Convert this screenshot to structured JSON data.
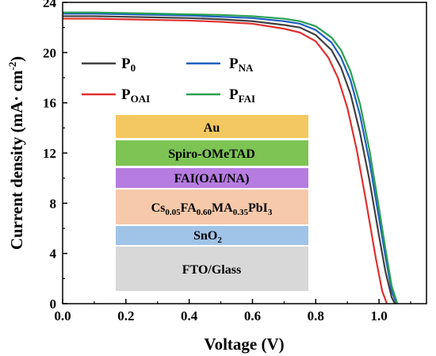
{
  "chart_data": {
    "type": "line",
    "xlabel": "Voltage (V)",
    "ylabel": "Current density (mA·cm⁻²)",
    "xlim": [
      0.0,
      1.15
    ],
    "ylim": [
      0,
      24
    ],
    "xticks": [
      "0.0",
      "0.2",
      "0.4",
      "0.6",
      "0.8",
      "1.0"
    ],
    "yticks": [
      "0",
      "4",
      "8",
      "12",
      "16",
      "20",
      "24"
    ],
    "grid": false,
    "legend_position": "top",
    "series": [
      {
        "name": "P0",
        "sub": "0",
        "color": "#404040",
        "jsc": 22.9,
        "x": [
          0,
          0.1,
          0.2,
          0.3,
          0.4,
          0.5,
          0.6,
          0.7,
          0.75,
          0.8,
          0.85,
          0.88,
          0.91,
          0.94,
          0.97,
          1.0,
          1.02,
          1.04,
          1.05
        ],
        "y": [
          22.9,
          22.9,
          22.85,
          22.8,
          22.75,
          22.65,
          22.5,
          22.2,
          22.0,
          21.4,
          20.2,
          18.8,
          16.7,
          13.6,
          9.8,
          5.4,
          2.6,
          0.5,
          0
        ]
      },
      {
        "name": "PNA",
        "sub": "NA",
        "color": "#1f5fbf",
        "jsc": 23.1,
        "x": [
          0,
          0.1,
          0.2,
          0.3,
          0.4,
          0.5,
          0.6,
          0.7,
          0.75,
          0.8,
          0.85,
          0.88,
          0.91,
          0.94,
          0.97,
          1.0,
          1.02,
          1.04,
          1.055
        ],
        "y": [
          23.1,
          23.1,
          23.05,
          23.0,
          22.95,
          22.85,
          22.75,
          22.5,
          22.3,
          21.8,
          20.8,
          19.6,
          17.8,
          15.0,
          11.3,
          6.8,
          3.8,
          1.0,
          0
        ]
      },
      {
        "name": "POAI",
        "sub": "OAI",
        "color": "#e03030",
        "jsc": 22.7,
        "x": [
          0,
          0.1,
          0.2,
          0.3,
          0.4,
          0.5,
          0.6,
          0.7,
          0.75,
          0.8,
          0.84,
          0.87,
          0.9,
          0.93,
          0.96,
          0.99,
          1.01,
          1.025
        ],
        "y": [
          22.7,
          22.7,
          22.65,
          22.6,
          22.55,
          22.45,
          22.3,
          21.9,
          21.6,
          20.9,
          19.6,
          18.0,
          15.6,
          12.2,
          8.0,
          3.6,
          1.0,
          0
        ]
      },
      {
        "name": "PFAI",
        "sub": "FAI",
        "color": "#2aa052",
        "jsc": 23.2,
        "x": [
          0,
          0.1,
          0.2,
          0.3,
          0.4,
          0.5,
          0.6,
          0.7,
          0.75,
          0.8,
          0.85,
          0.88,
          0.91,
          0.94,
          0.97,
          1.0,
          1.02,
          1.04,
          1.058
        ],
        "y": [
          23.2,
          23.2,
          23.15,
          23.1,
          23.05,
          23.0,
          22.9,
          22.7,
          22.5,
          22.1,
          21.2,
          20.2,
          18.5,
          15.9,
          12.2,
          7.6,
          4.4,
          1.4,
          0
        ]
      }
    ]
  },
  "legend": {
    "p0_base": "P",
    "p0_sub": "0",
    "pna_base": "P",
    "pna_sub": "NA",
    "poai_base": "P",
    "poai_sub": "OAI",
    "pfai_base": "P",
    "pfai_sub": "FAI"
  },
  "device_stack": {
    "layers": [
      {
        "label": "Au",
        "color": "#f4c860"
      },
      {
        "label": "Spiro-OMeTAD",
        "color": "#7dc454"
      },
      {
        "label": "FAI(OAI/NA)",
        "color": "#b67ce0"
      },
      {
        "label": "Cs0.05FA0.60MA0.35PbI3",
        "color": "#f6c9aa"
      },
      {
        "label": "SnO2",
        "color": "#a0c4e8"
      },
      {
        "label": "FTO/Glass",
        "color": "#d8d8d8"
      }
    ],
    "perovskite": {
      "cs": "Cs",
      "cs_sub": "0.05",
      "fa": "FA",
      "fa_sub": "0.60",
      "ma": "MA",
      "ma_sub": "0.35",
      "pbi": "PbI",
      "i_sub": "3"
    },
    "sno2": {
      "base": "SnO",
      "sub": "2"
    }
  },
  "ylabel_parts": {
    "main": "Current density (mA· cm",
    "exp": "-2",
    "close": ")"
  }
}
